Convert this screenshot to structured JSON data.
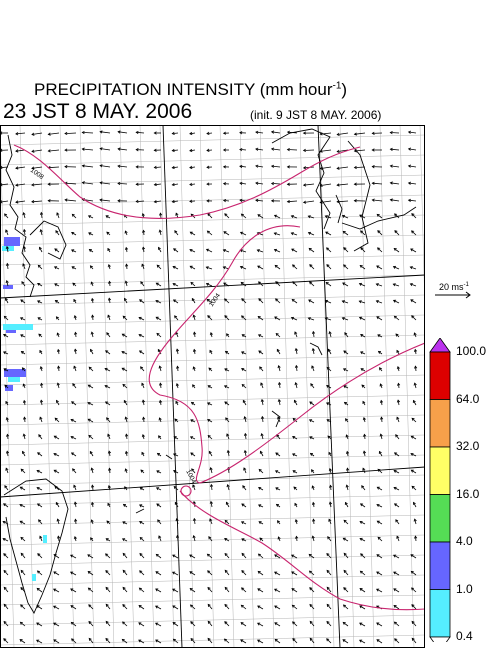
{
  "header": {
    "title": "PRECIPITATION INTENSITY (mm hour",
    "title_exponent": "-1",
    "title_close": ")",
    "datetime": "23 JST 8 MAY. 2006",
    "init": "(init. 9 JST 8 MAY. 2006)"
  },
  "wind_reference": {
    "label": "20 ms",
    "exponent": "-1"
  },
  "isobars": [
    {
      "label": "1008"
    },
    {
      "label": "1004"
    },
    {
      "label": "1004"
    }
  ],
  "colorbar": {
    "values": [
      "100.0",
      "64.0",
      "32.0",
      "16.0",
      "4.0",
      "1.0",
      "0.4"
    ],
    "colors": [
      "#dd0000",
      "#f7a04a",
      "#ffff66",
      "#55dd55",
      "#6666ff",
      "#55eeff"
    ],
    "over_color": "#bb33ee",
    "under_color": "#ffffff"
  },
  "colors": {
    "isobar": "#c8246e",
    "grid": "#b4b4b4",
    "frame": "#000000"
  }
}
